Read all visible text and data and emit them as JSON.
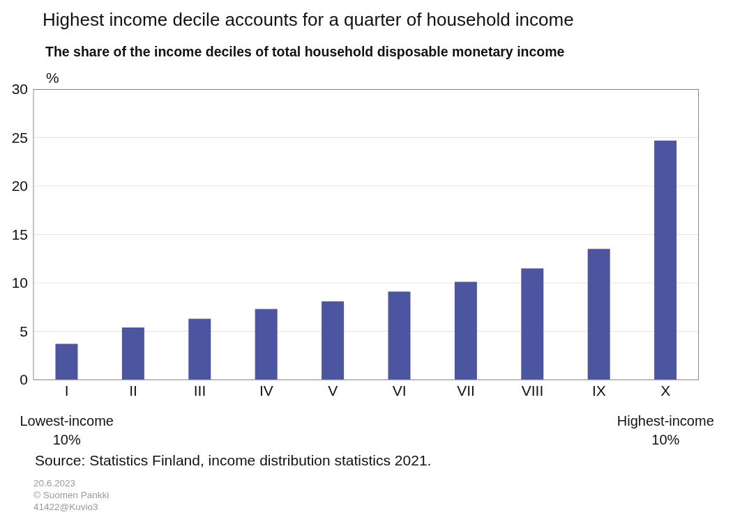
{
  "chart_data": {
    "type": "bar",
    "title": "Highest income decile accounts for a quarter of household income",
    "subtitle": "The share of the income deciles of total household disposable monetary income",
    "ylabel": "%",
    "categories": [
      "I",
      "II",
      "III",
      "IV",
      "V",
      "VI",
      "VII",
      "VIII",
      "IX",
      "X"
    ],
    "values": [
      3.7,
      5.4,
      6.3,
      7.3,
      8.1,
      9.1,
      10.1,
      11.5,
      13.5,
      24.7
    ],
    "color": "#4b55a0",
    "ylim": [
      0,
      30
    ],
    "yticks": [
      0,
      5,
      10,
      15,
      20,
      25,
      30
    ],
    "grid": "y",
    "annotations": [
      "Lowest-income\n10%",
      "Highest-income\n10%",
      "Source: Statistics Finland, income distribution statistics 2021.",
      "20.6.2023",
      "© Suomen Pankki",
      "41422@Kuvio3"
    ]
  }
}
